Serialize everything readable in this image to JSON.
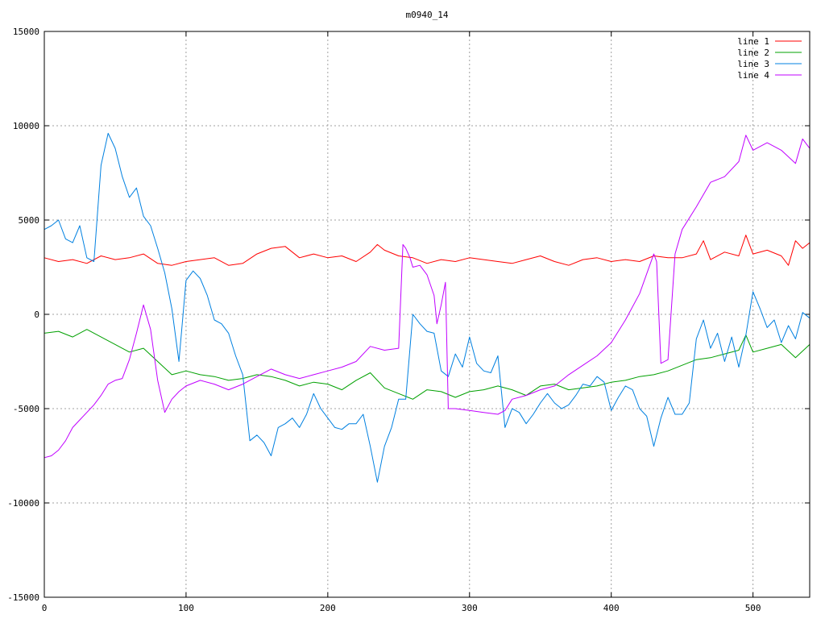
{
  "chart_data": {
    "type": "line",
    "title": "m0940_14",
    "xlabel": "",
    "ylabel": "",
    "xlim": [
      0,
      540
    ],
    "ylim": [
      -15000,
      15000
    ],
    "xticks": [
      0,
      100,
      200,
      300,
      400,
      500
    ],
    "yticks": [
      -15000,
      -10000,
      -5000,
      0,
      5000,
      10000,
      15000
    ],
    "grid": true,
    "legend_position": "top-right",
    "series": [
      {
        "name": "line 1",
        "color": "#ff0000",
        "x": [
          0,
          10,
          20,
          30,
          40,
          50,
          60,
          70,
          80,
          90,
          100,
          110,
          120,
          130,
          140,
          150,
          160,
          170,
          180,
          190,
          200,
          210,
          220,
          230,
          235,
          240,
          250,
          260,
          270,
          280,
          290,
          300,
          310,
          320,
          330,
          340,
          350,
          360,
          370,
          380,
          390,
          400,
          410,
          420,
          430,
          440,
          450,
          460,
          465,
          470,
          480,
          490,
          495,
          500,
          510,
          520,
          525,
          530,
          535,
          540
        ],
        "values": [
          3000,
          2800,
          2900,
          2700,
          3100,
          2900,
          3000,
          3200,
          2700,
          2600,
          2800,
          2900,
          3000,
          2600,
          2700,
          3200,
          3500,
          3600,
          3000,
          3200,
          3000,
          3100,
          2800,
          3300,
          3700,
          3400,
          3100,
          3000,
          2700,
          2900,
          2800,
          3000,
          2900,
          2800,
          2700,
          2900,
          3100,
          2800,
          2600,
          2900,
          3000,
          2800,
          2900,
          2800,
          3100,
          3000,
          3000,
          3200,
          3900,
          2900,
          3300,
          3100,
          4200,
          3200,
          3400,
          3100,
          2600,
          3900,
          3500,
          3800
        ]
      },
      {
        "name": "line 2",
        "color": "#00a000",
        "x": [
          0,
          10,
          20,
          30,
          40,
          50,
          60,
          70,
          80,
          90,
          100,
          110,
          120,
          130,
          140,
          150,
          160,
          170,
          180,
          190,
          200,
          210,
          220,
          230,
          240,
          250,
          260,
          270,
          280,
          290,
          300,
          310,
          320,
          330,
          340,
          350,
          360,
          370,
          380,
          390,
          400,
          410,
          420,
          430,
          440,
          450,
          460,
          470,
          480,
          490,
          495,
          500,
          510,
          520,
          530,
          540
        ],
        "values": [
          -1000,
          -900,
          -1200,
          -800,
          -1200,
          -1600,
          -2000,
          -1800,
          -2500,
          -3200,
          -3000,
          -3200,
          -3300,
          -3500,
          -3400,
          -3200,
          -3300,
          -3500,
          -3800,
          -3600,
          -3700,
          -4000,
          -3500,
          -3100,
          -3900,
          -4200,
          -4500,
          -4000,
          -4100,
          -4400,
          -4100,
          -4000,
          -3800,
          -4000,
          -4300,
          -3800,
          -3700,
          -4000,
          -3900,
          -3800,
          -3600,
          -3500,
          -3300,
          -3200,
          -3000,
          -2700,
          -2400,
          -2300,
          -2100,
          -1900,
          -1100,
          -2000,
          -1800,
          -1600,
          -2300,
          -1600
        ]
      },
      {
        "name": "line 3",
        "color": "#0080e0",
        "x": [
          0,
          5,
          10,
          15,
          20,
          25,
          30,
          35,
          40,
          45,
          50,
          55,
          60,
          65,
          70,
          75,
          80,
          85,
          90,
          95,
          100,
          105,
          110,
          115,
          120,
          125,
          130,
          135,
          140,
          145,
          150,
          155,
          160,
          165,
          170,
          175,
          180,
          185,
          190,
          195,
          200,
          205,
          210,
          215,
          220,
          225,
          230,
          235,
          240,
          245,
          250,
          255,
          260,
          265,
          270,
          275,
          280,
          285,
          290,
          295,
          300,
          305,
          310,
          315,
          320,
          325,
          330,
          335,
          340,
          345,
          350,
          355,
          360,
          365,
          370,
          375,
          380,
          385,
          390,
          395,
          400,
          405,
          410,
          415,
          420,
          425,
          430,
          435,
          440,
          445,
          450,
          455,
          460,
          465,
          470,
          475,
          480,
          485,
          490,
          495,
          500,
          505,
          510,
          515,
          520,
          525,
          530,
          535,
          540
        ],
        "values": [
          4500,
          4700,
          5000,
          4000,
          3800,
          4700,
          3000,
          2800,
          7900,
          9600,
          8800,
          7300,
          6200,
          6700,
          5200,
          4700,
          3500,
          2200,
          300,
          -2500,
          1800,
          2300,
          1900,
          1000,
          -300,
          -500,
          -1000,
          -2200,
          -3200,
          -6700,
          -6400,
          -6800,
          -7500,
          -6000,
          -5800,
          -5500,
          -6000,
          -5300,
          -4200,
          -5000,
          -5500,
          -6000,
          -6100,
          -5800,
          -5800,
          -5300,
          -7000,
          -8900,
          -7000,
          -6000,
          -4500,
          -4500,
          0,
          -500,
          -900,
          -1000,
          -3000,
          -3300,
          -2100,
          -2800,
          -1200,
          -2600,
          -3000,
          -3100,
          -2200,
          -6000,
          -5000,
          -5200,
          -5800,
          -5300,
          -4700,
          -4200,
          -4700,
          -5000,
          -4800,
          -4300,
          -3700,
          -3800,
          -3300,
          -3600,
          -5100,
          -4400,
          -3800,
          -4000,
          -5000,
          -5400,
          -7000,
          -5500,
          -4400,
          -5300,
          -5300,
          -4700,
          -1300,
          -300,
          -1800,
          -1000,
          -2500,
          -1200,
          -2800,
          -1100,
          1200,
          300,
          -700,
          -300,
          -1500,
          -600,
          -1300,
          100,
          -200
        ]
      },
      {
        "name": "line 4",
        "color": "#c000ff",
        "x": [
          0,
          5,
          10,
          15,
          20,
          25,
          30,
          35,
          40,
          45,
          50,
          55,
          60,
          65,
          70,
          75,
          80,
          85,
          90,
          95,
          100,
          110,
          120,
          130,
          140,
          150,
          160,
          170,
          180,
          190,
          200,
          210,
          220,
          230,
          240,
          250,
          253,
          255,
          258,
          260,
          265,
          270,
          275,
          277,
          280,
          283,
          285,
          290,
          300,
          310,
          320,
          325,
          330,
          340,
          350,
          360,
          370,
          380,
          390,
          400,
          410,
          420,
          430,
          432,
          435,
          440,
          445,
          450,
          460,
          470,
          480,
          490,
          495,
          500,
          510,
          520,
          530,
          535,
          540
        ],
        "values": [
          -7600,
          -7500,
          -7200,
          -6700,
          -6000,
          -5600,
          -5200,
          -4800,
          -4300,
          -3700,
          -3500,
          -3400,
          -2400,
          -1000,
          500,
          -800,
          -3500,
          -5200,
          -4500,
          -4100,
          -3800,
          -3500,
          -3700,
          -4000,
          -3700,
          -3300,
          -2900,
          -3200,
          -3400,
          -3200,
          -3000,
          -2800,
          -2500,
          -1700,
          -1900,
          -1800,
          3700,
          3500,
          3000,
          2500,
          2600,
          2100,
          1000,
          -500,
          500,
          1700,
          -5000,
          -5000,
          -5100,
          -5200,
          -5300,
          -5100,
          -4500,
          -4300,
          -4000,
          -3800,
          -3200,
          -2700,
          -2200,
          -1500,
          -300,
          1100,
          3200,
          2800,
          -2600,
          -2400,
          3200,
          4500,
          5700,
          7000,
          7300,
          8100,
          9500,
          8700,
          9100,
          8700,
          8000,
          9300,
          8800
        ]
      }
    ]
  }
}
